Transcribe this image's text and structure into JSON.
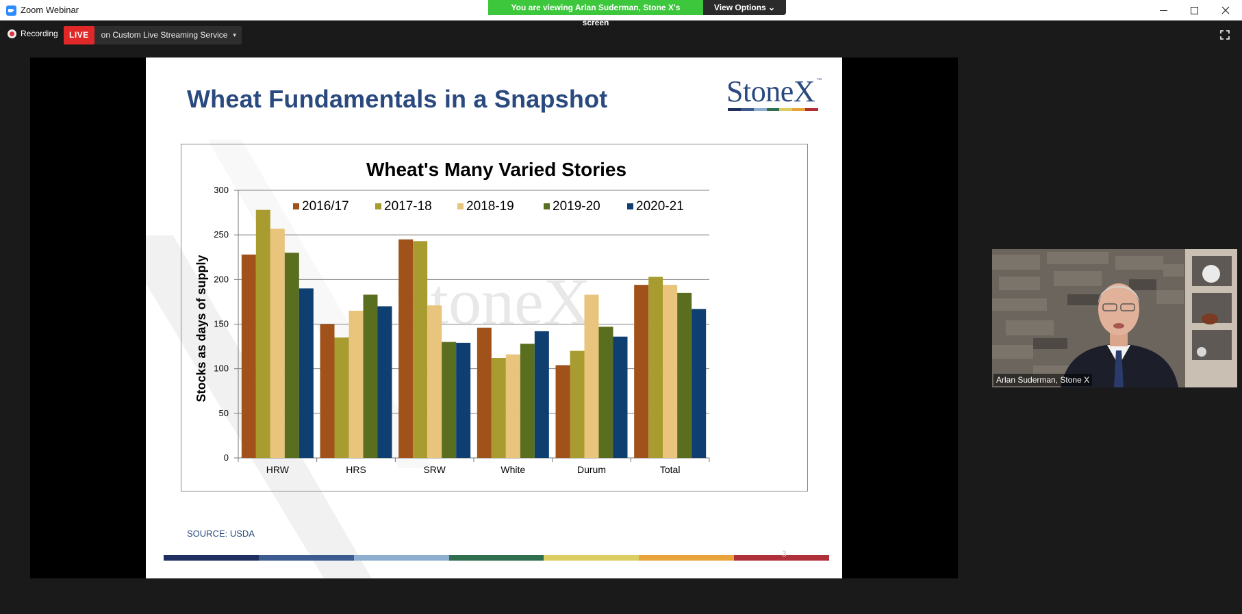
{
  "window": {
    "title": "Zoom Webinar"
  },
  "banner": {
    "viewing_text": "You are viewing Arlan Suderman, Stone X's screen",
    "view_options_label": "View Options ⌄"
  },
  "recording": {
    "label": "Recording",
    "live_tag": "LIVE",
    "service_label": "on Custom Live Streaming Service",
    "caret": "▾"
  },
  "slide": {
    "title": "Wheat Fundamentals in a Snapshot",
    "logo_text": "StoneX",
    "logo_tm": "™",
    "source": "SOURCE: USDA",
    "page_number": "3",
    "brand_colors": [
      "#1f2f5f",
      "#3b5b91",
      "#8eaed0",
      "#2f6e4e",
      "#dccd63",
      "#e8a43b",
      "#b0303a"
    ]
  },
  "chart_data": {
    "type": "bar",
    "title": "Wheat's Many Varied Stories",
    "xlabel": "",
    "ylabel": "Stocks as days of supply",
    "ylim": [
      0,
      300
    ],
    "yticks": [
      "0",
      "50",
      "100",
      "150",
      "200",
      "250",
      "300"
    ],
    "categories": [
      "HRW",
      "HRS",
      "SRW",
      "White",
      "Durum",
      "Total"
    ],
    "grid": true,
    "legend_position": "top",
    "series": [
      {
        "name": "2016/17",
        "color": "#a0521a",
        "values": [
          228,
          150,
          245,
          146,
          104,
          194
        ]
      },
      {
        "name": "2017-18",
        "color": "#a89c30",
        "values": [
          278,
          135,
          243,
          112,
          120,
          203
        ]
      },
      {
        "name": "2018-19",
        "color": "#e8c47c",
        "values": [
          257,
          165,
          171,
          116,
          183,
          194
        ]
      },
      {
        "name": "2019-20",
        "color": "#5a6e1f",
        "values": [
          230,
          183,
          130,
          128,
          147,
          185
        ]
      },
      {
        "name": "2020-21",
        "color": "#0f3f70",
        "values": [
          190,
          170,
          129,
          142,
          136,
          167
        ]
      }
    ]
  },
  "video": {
    "participant_name": "Arlan Suderman, Stone X"
  }
}
